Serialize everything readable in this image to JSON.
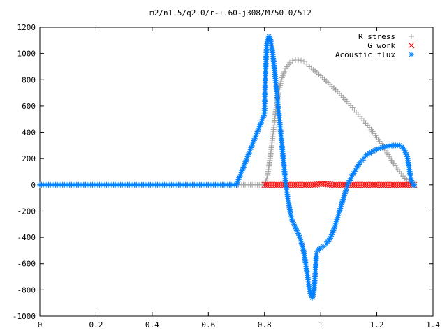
{
  "chart_data": {
    "type": "scatter",
    "title": "m2/n1.5/q2.0/r-+.60-j308/M750.0/512",
    "xlabel": "",
    "ylabel": "",
    "xlim": [
      0,
      1.4
    ],
    "ylim": [
      -1000,
      1200
    ],
    "x_ticks": [
      "0",
      "0.2",
      "0.4",
      "0.6",
      "0.8",
      "1",
      "1.2",
      "1.4"
    ],
    "y_ticks": [
      "1200",
      "1000",
      "800",
      "600",
      "400",
      "200",
      "0",
      "-200",
      "-400",
      "-600",
      "-800",
      "-1000"
    ],
    "grid": false,
    "legend_position": "top-right",
    "series": [
      {
        "name": "R stress",
        "marker": "plus",
        "color": "#a0a0a0",
        "x": [
          0.0,
          0.1,
          0.2,
          0.3,
          0.4,
          0.5,
          0.6,
          0.7,
          0.8,
          0.81,
          0.82,
          0.83,
          0.84,
          0.85,
          0.86,
          0.87,
          0.88,
          0.89,
          0.9,
          0.91,
          0.92,
          0.93,
          0.94,
          0.95,
          0.96,
          0.98,
          1.0,
          1.02,
          1.04,
          1.06,
          1.08,
          1.1,
          1.12,
          1.14,
          1.16,
          1.18,
          1.2,
          1.22,
          1.24,
          1.26,
          1.28,
          1.3,
          1.32,
          1.333
        ],
        "y": [
          0,
          0,
          0,
          0,
          0,
          0,
          0,
          0,
          0,
          60,
          200,
          380,
          560,
          700,
          800,
          860,
          900,
          930,
          945,
          950,
          950,
          948,
          940,
          920,
          900,
          865,
          830,
          790,
          750,
          710,
          665,
          620,
          570,
          520,
          470,
          420,
          360,
          300,
          230,
          160,
          100,
          50,
          15,
          5
        ]
      },
      {
        "name": "G work",
        "marker": "cross",
        "color": "#ff0000",
        "x": [
          0.8,
          0.82,
          0.84,
          0.86,
          0.88,
          0.9,
          0.92,
          0.94,
          0.96,
          0.98,
          1.0,
          1.02,
          1.04,
          1.06,
          1.08,
          1.1,
          1.12,
          1.14,
          1.16,
          1.18,
          1.2,
          1.22,
          1.24,
          1.26,
          1.28,
          1.3,
          1.32,
          1.333
        ],
        "y": [
          0,
          0,
          0,
          0,
          0,
          0,
          0,
          0,
          0,
          0,
          10,
          5,
          0,
          0,
          0,
          0,
          0,
          0,
          0,
          0,
          0,
          0,
          0,
          0,
          0,
          0,
          0,
          0
        ]
      },
      {
        "name": "Acoustic flux",
        "marker": "star",
        "color": "#0080ff",
        "x": [
          0.0,
          0.1,
          0.2,
          0.3,
          0.4,
          0.5,
          0.6,
          0.7,
          0.8,
          0.804,
          0.808,
          0.812,
          0.816,
          0.82,
          0.824,
          0.828,
          0.832,
          0.836,
          0.84,
          0.845,
          0.85,
          0.855,
          0.86,
          0.865,
          0.87,
          0.875,
          0.88,
          0.885,
          0.89,
          0.895,
          0.9,
          0.905,
          0.91,
          0.915,
          0.92,
          0.925,
          0.93,
          0.935,
          0.94,
          0.945,
          0.95,
          0.955,
          0.96,
          0.965,
          0.97,
          0.975,
          0.98,
          0.985,
          0.99,
          0.995,
          1.0,
          1.01,
          1.02,
          1.03,
          1.04,
          1.05,
          1.06,
          1.07,
          1.08,
          1.09,
          1.1,
          1.12,
          1.14,
          1.16,
          1.18,
          1.2,
          1.22,
          1.24,
          1.26,
          1.28,
          1.29,
          1.3,
          1.31,
          1.315,
          1.32,
          1.325,
          1.33,
          1.333
        ],
        "y": [
          0,
          0,
          0,
          0,
          0,
          0,
          0,
          0,
          540,
          900,
          1060,
          1120,
          1130,
          1120,
          1080,
          1020,
          950,
          870,
          780,
          680,
          570,
          460,
          350,
          240,
          130,
          20,
          -60,
          -130,
          -190,
          -240,
          -280,
          -300,
          -320,
          -350,
          -370,
          -400,
          -430,
          -470,
          -510,
          -580,
          -650,
          -720,
          -800,
          -840,
          -860,
          -820,
          -700,
          -520,
          -500,
          -490,
          -480,
          -470,
          -450,
          -420,
          -380,
          -320,
          -250,
          -180,
          -110,
          -40,
          20,
          100,
          170,
          220,
          250,
          270,
          285,
          295,
          300,
          300,
          290,
          260,
          200,
          130,
          60,
          20,
          -5,
          0
        ]
      }
    ]
  }
}
